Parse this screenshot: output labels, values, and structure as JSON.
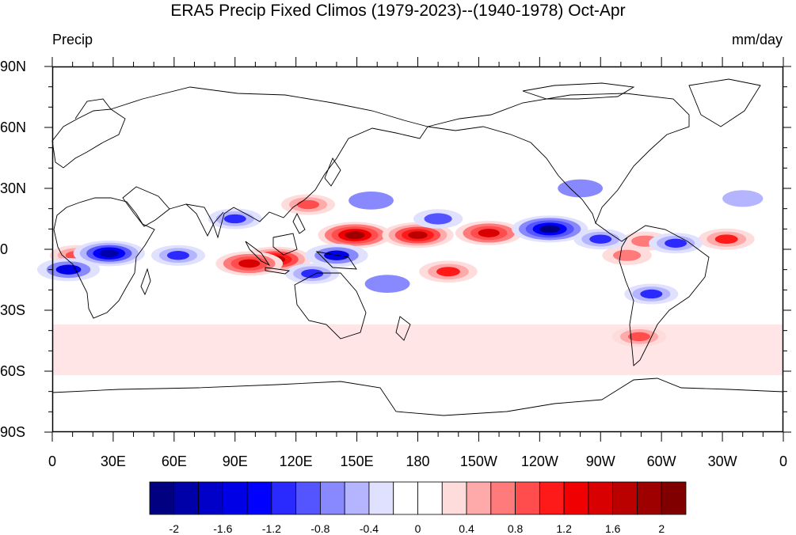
{
  "title": "ERA5 Precip Fixed Climos (1979-2023)--(1940-1978) Oct-Apr",
  "left_label": "Precip",
  "right_label": "mm/day",
  "lat_labels": [
    "90N",
    "60N",
    "30N",
    "0",
    "30S",
    "60S",
    "90S"
  ],
  "lon_labels": [
    "0",
    "30E",
    "60E",
    "90E",
    "120E",
    "150E",
    "180",
    "150W",
    "120W",
    "90W",
    "60W",
    "30W",
    "0"
  ],
  "colorbar": {
    "colors": [
      "#000080",
      "#0000a8",
      "#0000c8",
      "#0000e6",
      "#0000ff",
      "#2a2aff",
      "#5555ff",
      "#8888ff",
      "#b4b4ff",
      "#e0e0ff",
      "#ffffff",
      "#ffffff",
      "#ffdcdc",
      "#ffaaaa",
      "#ff7a7a",
      "#ff4c4c",
      "#ff1a1a",
      "#f00000",
      "#d80000",
      "#bb0000",
      "#9e0000",
      "#800000"
    ],
    "tick_labels": [
      "-2",
      "-1.6",
      "-1.2",
      "-0.8",
      "-0.4",
      "0",
      "0.4",
      "0.8",
      "1.2",
      "1.6",
      "2"
    ]
  },
  "chart_data": {
    "type": "heatmap",
    "projection": "cylindrical equidistant",
    "lon_range": [
      0,
      360
    ],
    "lat_range": [
      -90,
      90
    ],
    "units": "mm/day",
    "levels": [
      -2,
      -1.8,
      -1.6,
      -1.4,
      -1.2,
      -1,
      -0.8,
      -0.6,
      -0.4,
      -0.2,
      0,
      0.2,
      0.4,
      0.6,
      0.8,
      1,
      1.2,
      1.4,
      1.6,
      1.8,
      2
    ],
    "features": [
      {
        "lon": 149,
        "lat": 7,
        "value": 1.9
      },
      {
        "lon": 180,
        "lat": 7,
        "value": 1.8
      },
      {
        "lon": 215,
        "lat": 8,
        "value": 1.6
      },
      {
        "lon": 110,
        "lat": -5,
        "value": 1.8
      },
      {
        "lon": 97,
        "lat": -7,
        "value": 1.6
      },
      {
        "lon": 12,
        "lat": -3,
        "value": 1.0
      },
      {
        "lon": 126,
        "lat": 22,
        "value": 1.0
      },
      {
        "lon": 195,
        "lat": -11,
        "value": 1.2
      },
      {
        "lon": 283,
        "lat": -3,
        "value": 0.8
      },
      {
        "lon": 292,
        "lat": 4,
        "value": 0.8
      },
      {
        "lon": 332,
        "lat": 5,
        "value": 1.1
      },
      {
        "lon": 289,
        "lat": -43,
        "value": 1.0
      },
      {
        "lon": 8,
        "lat": -10,
        "value": -1.4
      },
      {
        "lon": 28,
        "lat": -2,
        "value": -1.8
      },
      {
        "lon": 90,
        "lat": 15,
        "value": -1.0
      },
      {
        "lon": 62,
        "lat": -3,
        "value": -1.0
      },
      {
        "lon": 140,
        "lat": -3,
        "value": -1.4
      },
      {
        "lon": 128,
        "lat": -12,
        "value": -1.0
      },
      {
        "lon": 245,
        "lat": 10,
        "value": -2.0
      },
      {
        "lon": 190,
        "lat": 15,
        "value": -0.8
      },
      {
        "lon": 157,
        "lat": 24,
        "value": -0.6
      },
      {
        "lon": 270,
        "lat": 5,
        "value": -1.0
      },
      {
        "lon": 295,
        "lat": -22,
        "value": -1.0
      },
      {
        "lon": 307,
        "lat": 3,
        "value": -1.0
      },
      {
        "lon": 260,
        "lat": 30,
        "value": -0.6
      },
      {
        "lon": 340,
        "lat": 25,
        "value": -0.4
      },
      {
        "lon": 165,
        "lat": -17,
        "value": -0.6
      }
    ]
  }
}
